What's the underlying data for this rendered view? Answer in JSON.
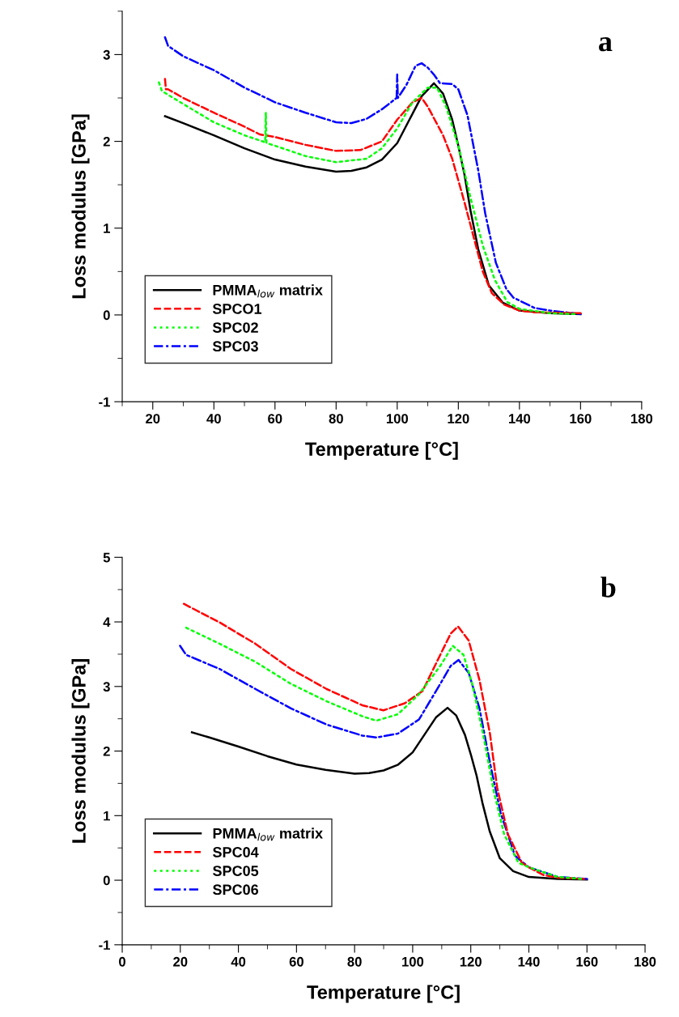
{
  "chart_data": [
    {
      "type": "line",
      "xlabel": "Temperature [°C]",
      "ylabel": "Loss modulus [GPa]",
      "annotations": [
        "a"
      ],
      "xlim": [
        10,
        180
      ],
      "xticks": [
        20,
        40,
        60,
        80,
        100,
        120,
        140,
        160,
        180
      ],
      "ylim": [
        -1,
        3.5
      ],
      "yticks": [
        -1,
        0,
        1,
        2,
        3
      ],
      "grid": false,
      "legend": "bottom left",
      "marker": "none",
      "series": [
        {
          "name": "PMMA$_{low}$ matrix",
          "color": "#000000",
          "line_style": "solid",
          "x": [
            24,
            30,
            40,
            50,
            60,
            70,
            80,
            85,
            90,
            95,
            100,
            104,
            108,
            112,
            115,
            118,
            120,
            122,
            124,
            126.5,
            130,
            134.6,
            140,
            150,
            160
          ],
          "values": [
            2.29,
            2.21,
            2.07,
            1.92,
            1.79,
            1.71,
            1.65,
            1.66,
            1.7,
            1.79,
            1.98,
            2.25,
            2.52,
            2.67,
            2.55,
            2.25,
            1.95,
            1.62,
            1.2,
            0.76,
            0.34,
            0.14,
            0.05,
            0.02,
            0.01
          ]
        },
        {
          "name": "SPCO1",
          "color": "#ff0000",
          "line_style": "dashed",
          "x": [
            24,
            24.3,
            25,
            30,
            40,
            50,
            55,
            60,
            70,
            80,
            88,
            95,
            100,
            105,
            108,
            110,
            115,
            118,
            120,
            122,
            125,
            128,
            131,
            135,
            140,
            145,
            160
          ],
          "values": [
            2.72,
            2.6,
            2.6,
            2.5,
            2.33,
            2.17,
            2.08,
            2.05,
            1.96,
            1.89,
            1.9,
            2.0,
            2.25,
            2.45,
            2.5,
            2.4,
            2.07,
            1.8,
            1.55,
            1.3,
            0.9,
            0.5,
            0.25,
            0.12,
            0.05,
            0.03,
            0.02
          ]
        },
        {
          "name": "SPC02",
          "color": "#00ff00",
          "line_style": "dotted",
          "x": [
            22,
            23,
            30,
            40,
            50,
            56.8,
            57,
            57.2,
            60,
            70,
            80,
            90,
            95,
            100,
            105,
            110,
            113,
            116,
            120,
            124,
            128,
            132,
            136,
            140,
            150,
            158
          ],
          "values": [
            2.68,
            2.58,
            2.43,
            2.22,
            2.07,
            1.99,
            2.33,
            1.98,
            1.95,
            1.83,
            1.76,
            1.8,
            1.92,
            2.15,
            2.45,
            2.62,
            2.62,
            2.4,
            1.95,
            1.35,
            0.8,
            0.4,
            0.15,
            0.07,
            0.02,
            0.01
          ]
        },
        {
          "name": "SPC03",
          "color": "#0000ff",
          "line_style": "dashdot",
          "x": [
            24,
            25,
            30,
            40,
            50,
            60,
            70,
            80,
            85,
            90,
            95,
            99.8,
            100,
            100.2,
            103,
            106,
            108,
            110,
            112,
            114,
            118,
            120,
            123,
            126.5,
            128.8,
            132.3,
            135.7,
            138,
            145,
            150,
            160
          ],
          "values": [
            3.2,
            3.1,
            2.98,
            2.82,
            2.62,
            2.45,
            2.33,
            2.22,
            2.21,
            2.26,
            2.37,
            2.5,
            2.77,
            2.5,
            2.65,
            2.87,
            2.9,
            2.85,
            2.77,
            2.67,
            2.66,
            2.6,
            2.3,
            1.67,
            1.17,
            0.6,
            0.3,
            0.2,
            0.08,
            0.05,
            0.01
          ]
        }
      ]
    },
    {
      "type": "line",
      "xlabel": "Temperature [°C]",
      "ylabel": "Loss modulus [GPa]",
      "annotations": [
        "b"
      ],
      "xlim": [
        0,
        180
      ],
      "xticks": [
        0,
        20,
        40,
        60,
        80,
        100,
        120,
        140,
        160,
        180
      ],
      "ylim": [
        -1,
        5
      ],
      "yticks": [
        -1,
        0,
        1,
        2,
        3,
        4,
        5
      ],
      "grid": false,
      "legend": "bottom left",
      "marker": "none",
      "series": [
        {
          "name": "PMMA$_{low}$ matrix",
          "color": "#000000",
          "line_style": "solid",
          "x": [
            24,
            30,
            40,
            50,
            60,
            70,
            80,
            85,
            90,
            95,
            100,
            104,
            108,
            112,
            115,
            118,
            120,
            122,
            124,
            126.5,
            130,
            134.6,
            140,
            150,
            160
          ],
          "values": [
            2.29,
            2.21,
            2.07,
            1.92,
            1.79,
            1.71,
            1.65,
            1.66,
            1.7,
            1.79,
            1.98,
            2.25,
            2.52,
            2.67,
            2.55,
            2.25,
            1.95,
            1.62,
            1.2,
            0.76,
            0.34,
            0.14,
            0.05,
            0.02,
            0.01
          ]
        },
        {
          "name": "SPC04",
          "color": "#ff0000",
          "line_style": "dashed",
          "x": [
            21.2,
            33.6,
            45.9,
            58.1,
            70.4,
            82.6,
            89.9,
            97.3,
            103.4,
            109.5,
            113.1,
            115.6,
            119.3,
            123,
            126.6,
            129.1,
            132.8,
            137.6,
            140,
            145,
            150,
            159
          ],
          "values": [
            4.28,
            3.99,
            3.66,
            3.27,
            2.96,
            2.71,
            2.63,
            2.74,
            2.93,
            3.49,
            3.82,
            3.93,
            3.71,
            3.1,
            2.27,
            1.43,
            0.71,
            0.27,
            0.2,
            0.08,
            0.04,
            0.02
          ]
        },
        {
          "name": "SPC05",
          "color": "#00ff00",
          "line_style": "dotted",
          "x": [
            22,
            33.6,
            45.9,
            58.1,
            70.4,
            82.6,
            87.5,
            94.9,
            102.2,
            109.5,
            113.8,
            117.5,
            120.5,
            124.2,
            127.9,
            131.5,
            136.4,
            140,
            150,
            158
          ],
          "values": [
            3.91,
            3.66,
            3.38,
            3.04,
            2.77,
            2.54,
            2.47,
            2.57,
            2.88,
            3.32,
            3.63,
            3.49,
            3.04,
            2.27,
            1.38,
            0.71,
            0.27,
            0.2,
            0.05,
            0.02
          ]
        },
        {
          "name": "SPC06",
          "color": "#0000ff",
          "line_style": "dashdot",
          "x": [
            19.9,
            22,
            33.6,
            45.9,
            58.1,
            70.4,
            82.6,
            87.5,
            94.9,
            102.2,
            109.5,
            113.1,
            115.8,
            119.3,
            123,
            126.6,
            130.3,
            135.2,
            140,
            150,
            160
          ],
          "values": [
            3.63,
            3.49,
            3.27,
            2.96,
            2.66,
            2.41,
            2.24,
            2.21,
            2.27,
            2.49,
            3.04,
            3.32,
            3.41,
            3.21,
            2.66,
            1.82,
            1.04,
            0.38,
            0.2,
            0.05,
            0.02
          ]
        }
      ]
    }
  ]
}
